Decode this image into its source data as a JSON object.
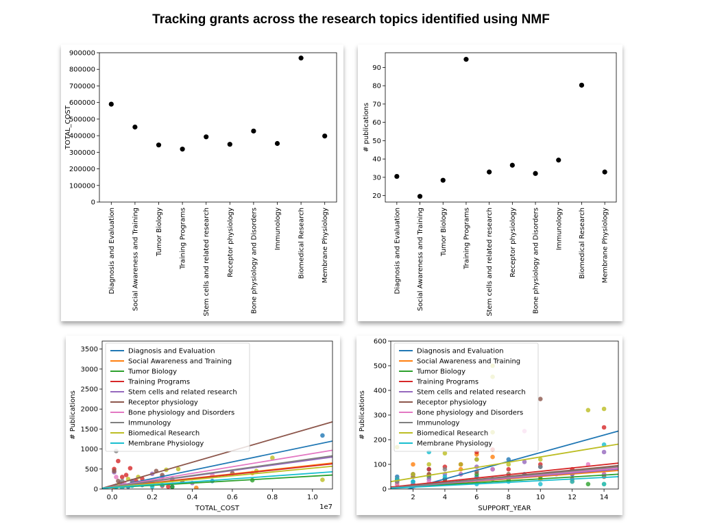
{
  "title": "Tracking grants across the research topics identified using NMF",
  "chart_data": [
    {
      "type": "scatter",
      "categories": [
        "Diagnosis and Evaluation",
        "Social Awareness and Training",
        "Tumor Biology",
        "Training Programs",
        "Stem cells and related research",
        "Receptor physiology",
        "Bone physiology and Disorders",
        "Immunology",
        "Biomedical Research",
        "Membrane Physiology"
      ],
      "values": [
        590000,
        452000,
        344000,
        319000,
        393000,
        348000,
        428000,
        353000,
        868000,
        398000
      ],
      "ylabel": "TOTAL_COST",
      "ylim": [
        0,
        900000
      ],
      "yticks": [
        0,
        100000,
        200000,
        300000,
        400000,
        500000,
        600000,
        700000,
        800000,
        900000
      ],
      "ytick_labels": [
        "0",
        "100000",
        "200000",
        "300000",
        "400000",
        "500000",
        "600000",
        "700000",
        "800000",
        "900000"
      ],
      "marker_color": "#000000"
    },
    {
      "type": "scatter",
      "categories": [
        "Diagnosis and Evaluation",
        "Social Awareness and Training",
        "Tumor Biology",
        "Training Programs",
        "Stem cells and related research",
        "Receptor physiology",
        "Bone physiology and Disorders",
        "Immunology",
        "Biomedical Research",
        "Membrane Physiology"
      ],
      "values": [
        30.5,
        19.6,
        28.4,
        94.4,
        32.9,
        36.6,
        32.1,
        39.4,
        80.3,
        32.9
      ],
      "ylabel": "# publications",
      "ylim": [
        16.5,
        98
      ],
      "yticks": [
        20,
        30,
        40,
        50,
        60,
        70,
        80,
        90
      ],
      "ytick_labels": [
        "20",
        "30",
        "40",
        "50",
        "60",
        "70",
        "80",
        "90"
      ],
      "marker_color": "#000000"
    },
    {
      "type": "scatter",
      "xlabel": "TOTAL_COST",
      "ylabel": "# Publications",
      "x_multiplier": "1e7",
      "xlim": [
        -0.05,
        1.1
      ],
      "ylim": [
        0,
        3700
      ],
      "xticks": [
        0.0,
        0.2,
        0.4,
        0.6,
        0.8,
        1.0
      ],
      "xtick_labels": [
        "0.0",
        "0.2",
        "0.4",
        "0.6",
        "0.8",
        "1.0"
      ],
      "yticks": [
        0,
        500,
        1000,
        1500,
        2000,
        2500,
        3000,
        3500
      ],
      "ytick_labels": [
        "0",
        "500",
        "1000",
        "1500",
        "2000",
        "2500",
        "3000",
        "3500"
      ],
      "legend_position": "upper-left",
      "series": [
        {
          "name": "Diagnosis and Evaluation",
          "color": "#1f77b4",
          "fit": [
            -0.05,
            0,
            1.1,
            1200
          ],
          "points": [
            [
              0.02,
              80
            ],
            [
              0.05,
              120
            ],
            [
              0.08,
              60
            ],
            [
              0.1,
              200
            ],
            [
              0.15,
              100
            ],
            [
              0.2,
              150
            ],
            [
              0.3,
              60
            ],
            [
              0.5,
              200
            ],
            [
              1.05,
              1340
            ]
          ]
        },
        {
          "name": "Social Awareness and Training",
          "color": "#ff7f0e",
          "fit": [
            -0.05,
            20,
            1.1,
            650
          ],
          "points": [
            [
              0.01,
              40
            ],
            [
              0.05,
              80
            ],
            [
              0.1,
              120
            ],
            [
              0.18,
              150
            ],
            [
              0.25,
              100
            ],
            [
              0.42,
              30
            ],
            [
              0.7,
              400
            ]
          ]
        },
        {
          "name": "Tumor Biology",
          "color": "#2ca02c",
          "fit": [
            -0.05,
            20,
            1.1,
            350
          ],
          "points": [
            [
              0.02,
              60
            ],
            [
              0.06,
              90
            ],
            [
              0.12,
              140
            ],
            [
              0.2,
              100
            ],
            [
              0.3,
              50
            ],
            [
              0.7,
              220
            ]
          ]
        },
        {
          "name": "Training Programs",
          "color": "#d62728",
          "fit": [
            -0.05,
            20,
            1.1,
            630
          ],
          "points": [
            [
              0.01,
              500
            ],
            [
              0.03,
              700
            ],
            [
              0.05,
              300
            ],
            [
              0.07,
              350
            ],
            [
              0.09,
              520
            ],
            [
              0.12,
              200
            ],
            [
              0.15,
              260
            ],
            [
              0.2,
              120
            ],
            [
              0.25,
              80
            ],
            [
              0.28,
              60
            ]
          ]
        },
        {
          "name": "Stem cells and related research",
          "color": "#9467bd",
          "fit": [
            -0.05,
            20,
            1.1,
            800
          ],
          "points": [
            [
              0.01,
              420
            ],
            [
              0.04,
              150
            ],
            [
              0.1,
              200
            ],
            [
              0.2,
              380
            ],
            [
              0.25,
              300
            ],
            [
              0.4,
              150
            ]
          ]
        },
        {
          "name": "Receptor physiology",
          "color": "#8c564b",
          "fit": [
            -0.05,
            20,
            1.1,
            1680
          ],
          "points": [
            [
              0.01,
              450
            ],
            [
              0.03,
              200
            ],
            [
              0.1,
              130
            ],
            [
              0.22,
              450
            ],
            [
              0.25,
              350
            ],
            [
              0.35,
              200
            ],
            [
              0.6,
              400
            ]
          ]
        },
        {
          "name": "Bone physiology and Disorders",
          "color": "#e377c2",
          "fit": [
            -0.05,
            20,
            1.1,
            970
          ],
          "points": [
            [
              0.02,
              300
            ],
            [
              0.06,
              150
            ],
            [
              0.2,
              180
            ],
            [
              0.3,
              220
            ],
            [
              0.5,
              350
            ]
          ]
        },
        {
          "name": "Immunology",
          "color": "#7f7f7f",
          "fit": [
            -0.05,
            20,
            1.1,
            830
          ],
          "points": [
            [
              0.02,
              950
            ],
            [
              0.05,
              200
            ],
            [
              0.1,
              150
            ],
            [
              0.2,
              120
            ],
            [
              0.3,
              250
            ]
          ]
        },
        {
          "name": "Biomedical Research",
          "color": "#bcbd22",
          "fit": [
            -0.05,
            20,
            1.1,
            570
          ],
          "points": [
            [
              0.03,
              100
            ],
            [
              0.08,
              250
            ],
            [
              0.13,
              300
            ],
            [
              0.2,
              150
            ],
            [
              0.27,
              480
            ],
            [
              0.33,
              500
            ],
            [
              0.72,
              450
            ],
            [
              0.8,
              780
            ],
            [
              1.05,
              230
            ]
          ]
        },
        {
          "name": "Membrane Physiology",
          "color": "#17becf",
          "fit": [
            -0.05,
            20,
            1.1,
            430
          ],
          "points": [
            [
              0.02,
              50
            ],
            [
              0.05,
              30
            ],
            [
              0.1,
              80
            ],
            [
              0.15,
              150
            ],
            [
              0.2,
              60
            ],
            [
              0.25,
              100
            ]
          ]
        }
      ]
    },
    {
      "type": "scatter",
      "xlabel": "SUPPORT_YEAR",
      "ylabel": "# Publications",
      "xlim": [
        0.6,
        14.9
      ],
      "ylim": [
        0,
        600
      ],
      "xticks": [
        2,
        4,
        6,
        8,
        10,
        12,
        14
      ],
      "xtick_labels": [
        "2",
        "4",
        "6",
        "8",
        "10",
        "12",
        "14"
      ],
      "yticks": [
        0,
        100,
        200,
        300,
        400,
        500,
        600
      ],
      "ytick_labels": [
        "0",
        "100",
        "200",
        "300",
        "400",
        "500",
        "600"
      ],
      "legend_position": "upper-left",
      "series": [
        {
          "name": "Diagnosis and Evaluation",
          "color": "#1f77b4",
          "fit": [
            0.6,
            -20,
            14.9,
            235
          ],
          "points": [
            [
              1,
              50
            ],
            [
              2,
              30
            ],
            [
              3,
              80
            ],
            [
              4,
              40
            ],
            [
              5,
              60
            ],
            [
              6,
              50
            ],
            [
              7,
              80
            ],
            [
              8,
              120
            ],
            [
              9,
              60
            ],
            [
              10,
              90
            ],
            [
              12,
              60
            ],
            [
              14,
              60
            ]
          ]
        },
        {
          "name": "Social Awareness and Training",
          "color": "#ff7f0e",
          "fit": [
            0.6,
            5,
            14.9,
            75
          ],
          "points": [
            [
              1,
              20
            ],
            [
              2,
              100
            ],
            [
              3,
              60
            ],
            [
              4,
              30
            ],
            [
              5,
              80
            ],
            [
              6,
              140
            ],
            [
              7,
              130
            ],
            [
              8,
              60
            ],
            [
              10,
              40
            ],
            [
              12,
              30
            ],
            [
              14,
              50
            ]
          ]
        },
        {
          "name": "Tumor Biology",
          "color": "#2ca02c",
          "fit": [
            0.6,
            5,
            14.9,
            60
          ],
          "points": [
            [
              1,
              30
            ],
            [
              2,
              20
            ],
            [
              3,
              50
            ],
            [
              4,
              40
            ],
            [
              5,
              30
            ],
            [
              6,
              60
            ],
            [
              8,
              40
            ],
            [
              10,
              50
            ],
            [
              13,
              20
            ]
          ]
        },
        {
          "name": "Training Programs",
          "color": "#d62728",
          "fit": [
            0.6,
            8,
            14.9,
            105
          ],
          "points": [
            [
              1,
              40
            ],
            [
              2,
              60
            ],
            [
              3,
              80
            ],
            [
              4,
              90
            ],
            [
              5,
              100
            ],
            [
              6,
              150
            ],
            [
              7,
              160
            ],
            [
              8,
              80
            ],
            [
              10,
              100
            ],
            [
              12,
              80
            ],
            [
              14,
              250
            ]
          ]
        },
        {
          "name": "Stem cells and related research",
          "color": "#9467bd",
          "fit": [
            0.6,
            5,
            14.9,
            80
          ],
          "points": [
            [
              1,
              30
            ],
            [
              2,
              20
            ],
            [
              3,
              40
            ],
            [
              4,
              60
            ],
            [
              6,
              90
            ],
            [
              8,
              50
            ],
            [
              9,
              110
            ],
            [
              12,
              60
            ],
            [
              14,
              150
            ]
          ]
        },
        {
          "name": "Receptor physiology",
          "color": "#8c564b",
          "fit": [
            0.6,
            5,
            14.9,
            95
          ],
          "points": [
            [
              1,
              40
            ],
            [
              2,
              50
            ],
            [
              3,
              60
            ],
            [
              4,
              40
            ],
            [
              6,
              70
            ],
            [
              10,
              365
            ],
            [
              12,
              40
            ],
            [
              14,
              80
            ]
          ]
        },
        {
          "name": "Bone physiology and Disorders",
          "color": "#e377c2",
          "fit": [
            0.6,
            5,
            14.9,
            85
          ],
          "points": [
            [
              1,
              20
            ],
            [
              3,
              30
            ],
            [
              5,
              60
            ],
            [
              7,
              80
            ],
            [
              9,
              235
            ],
            [
              11,
              60
            ],
            [
              13,
              100
            ],
            [
              14,
              60
            ]
          ]
        },
        {
          "name": "Immunology",
          "color": "#7f7f7f",
          "fit": [
            0.6,
            5,
            14.9,
            90
          ],
          "points": [
            [
              1,
              30
            ],
            [
              2,
              60
            ],
            [
              4,
              80
            ],
            [
              6,
              120
            ],
            [
              8,
              60
            ],
            [
              10,
              90
            ],
            [
              12,
              70
            ],
            [
              14,
              50
            ]
          ]
        },
        {
          "name": "Biomedical Research",
          "color": "#bcbd22",
          "fit": [
            0.6,
            30,
            14.9,
            182
          ],
          "points": [
            [
              1,
              170
            ],
            [
              2,
              60
            ],
            [
              3,
              100
            ],
            [
              4,
              145
            ],
            [
              5,
              100
            ],
            [
              6,
              120
            ],
            [
              7,
              500
            ],
            [
              7,
              455
            ],
            [
              7,
              230
            ],
            [
              8,
              100
            ],
            [
              10,
              120
            ],
            [
              13,
              320
            ],
            [
              14,
              325
            ],
            [
              14,
              20
            ]
          ]
        },
        {
          "name": "Membrane Physiology",
          "color": "#17becf",
          "fit": [
            0.6,
            3,
            14.9,
            50
          ],
          "points": [
            [
              1,
              40
            ],
            [
              2,
              30
            ],
            [
              3,
              150
            ],
            [
              4,
              50
            ],
            [
              5,
              30
            ],
            [
              6,
              20
            ],
            [
              7,
              40
            ],
            [
              8,
              30
            ],
            [
              10,
              20
            ],
            [
              12,
              30
            ],
            [
              14,
              180
            ],
            [
              14,
              20
            ]
          ]
        }
      ]
    }
  ]
}
